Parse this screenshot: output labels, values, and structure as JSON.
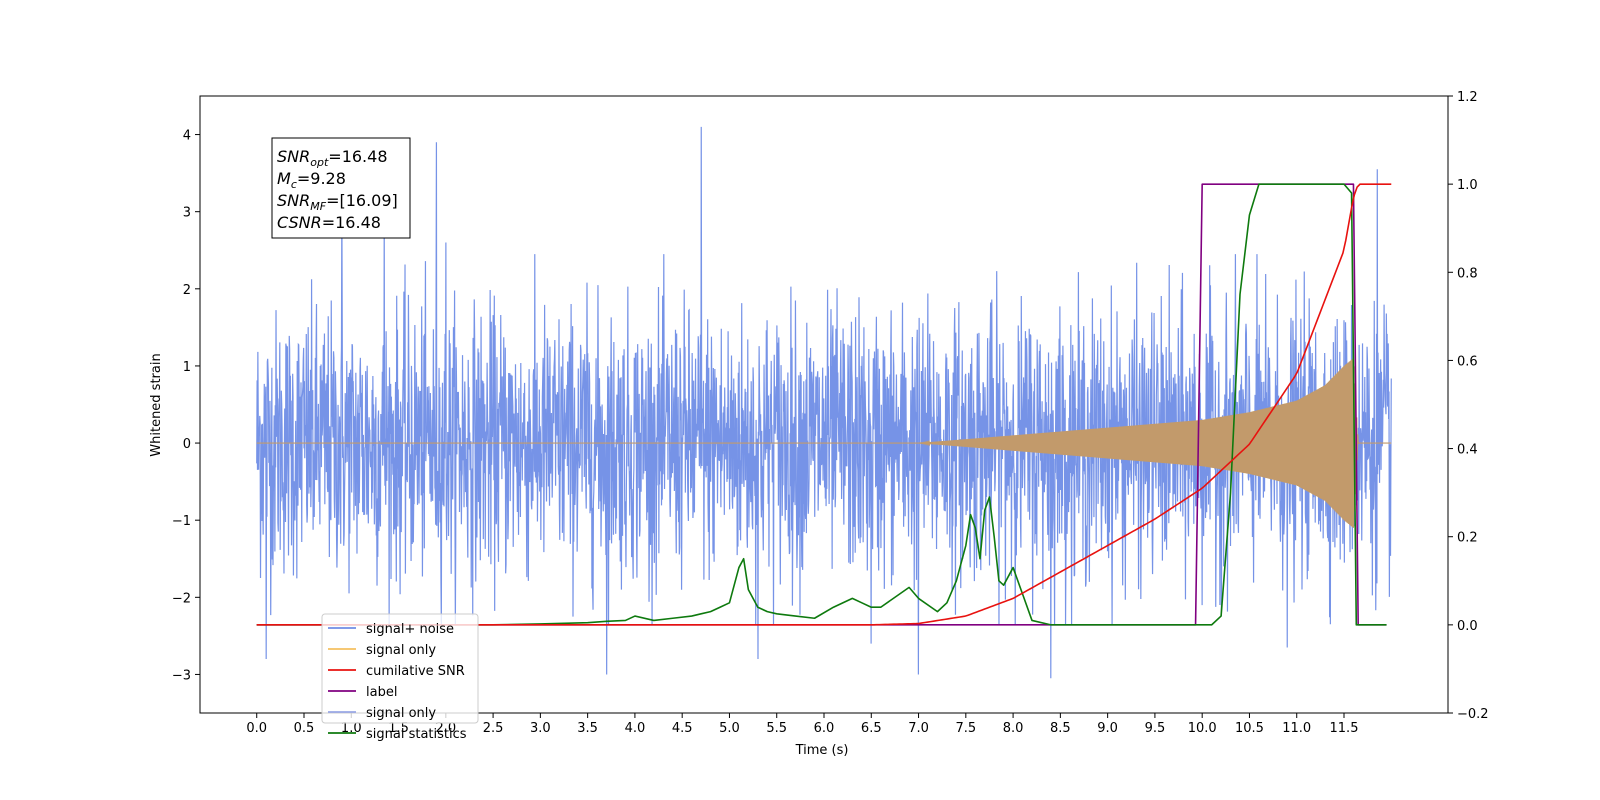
{
  "chart_data": {
    "type": "line",
    "title": "",
    "xlabel": "Time (s)",
    "ylabel": "Whitened strain",
    "xlim": [
      -0.6,
      12.6
    ],
    "ylim": [
      -3.5,
      4.5
    ],
    "ylim_right": [
      -0.2,
      1.2
    ],
    "x_ticks": [
      "0.0",
      "0.5",
      "1.0",
      "1.5",
      "2.0",
      "2.5",
      "3.0",
      "3.5",
      "4.0",
      "4.5",
      "5.0",
      "5.5",
      "6.0",
      "6.5",
      "7.0",
      "7.5",
      "8.0",
      "8.5",
      "9.0",
      "9.5",
      "10.0",
      "10.5",
      "11.0",
      "11.5"
    ],
    "y_ticks_left": [
      "−3",
      "−2",
      "−1",
      "0",
      "1",
      "2",
      "3",
      "4"
    ],
    "y_ticks_right": [
      "−0.2",
      "0.0",
      "0.2",
      "0.4",
      "0.6",
      "0.8",
      "1.0",
      "1.2"
    ],
    "grid": false,
    "legend_position": "lower-left",
    "annotation": {
      "lines": [
        {
          "name": "SNR",
          "sub": "opt",
          "value": "=16.48"
        },
        {
          "name": "M",
          "sub": "c",
          "value": "=9.28"
        },
        {
          "name": "SNR",
          "sub": "MF",
          "value": "=[16.09]"
        },
        {
          "name": "CSNR",
          "sub": "",
          "value": "=16.48"
        }
      ]
    },
    "series": [
      {
        "name": "signal+ noise",
        "color": "#6f8de6",
        "axis": "left",
        "description_range": {
          "x_start": 0.0,
          "x_end": 12.0,
          "typical_min": -2.3,
          "typical_max": 2.4
        },
        "peaks": [
          [
            0.1,
            -2.8
          ],
          [
            0.9,
            3.1
          ],
          [
            1.35,
            3.0
          ],
          [
            1.9,
            3.9
          ],
          [
            2.0,
            2.6
          ],
          [
            3.7,
            -3.0
          ],
          [
            4.7,
            4.1
          ],
          [
            5.3,
            -2.8
          ],
          [
            6.5,
            -2.6
          ],
          [
            7.0,
            -3.0
          ],
          [
            8.4,
            -3.05
          ],
          [
            10.9,
            -2.65
          ],
          [
            11.85,
            3.55
          ]
        ]
      },
      {
        "name": "signal only",
        "color": "#f5c060",
        "axis": "left",
        "x": [
          0.0,
          7.0,
          7.5,
          8.0,
          8.5,
          9.0,
          9.5,
          10.0,
          10.5,
          11.0,
          11.3,
          11.5,
          11.6,
          11.65,
          12.0
        ],
        "amplitude": [
          0.0,
          0.0,
          0.05,
          0.1,
          0.15,
          0.2,
          0.25,
          0.3,
          0.4,
          0.55,
          0.75,
          1.0,
          1.1,
          0.0,
          0.0
        ]
      },
      {
        "name": "cumilative SNR",
        "color": "#e8120f",
        "axis": "right",
        "x": [
          0.0,
          6.5,
          7.0,
          7.5,
          8.0,
          8.5,
          9.0,
          9.5,
          10.0,
          10.5,
          11.0,
          11.5,
          11.6,
          11.65,
          12.0
        ],
        "values": [
          0.0,
          0.0,
          0.003,
          0.02,
          0.06,
          0.12,
          0.18,
          0.24,
          0.31,
          0.41,
          0.57,
          0.85,
          0.97,
          1.0,
          1.0
        ]
      },
      {
        "name": "label",
        "color": "#800080",
        "axis": "right",
        "x": [
          0.0,
          9.93,
          10.0,
          11.6,
          11.65,
          11.95
        ],
        "values": [
          0.0,
          0.0,
          1.0,
          1.0,
          0.0,
          0.0
        ]
      },
      {
        "name": "signal only",
        "color": "#9aa8e6",
        "axis": "right",
        "x": [],
        "values": []
      },
      {
        "name": "signal statistics",
        "color": "#0e7a0e",
        "axis": "right",
        "x": [
          0.0,
          2.5,
          3.0,
          3.5,
          3.7,
          3.9,
          4.0,
          4.2,
          4.4,
          4.6,
          4.7,
          4.8,
          4.9,
          5.0,
          5.1,
          5.15,
          5.2,
          5.3,
          5.4,
          5.5,
          5.7,
          5.9,
          6.1,
          6.3,
          6.4,
          6.5,
          6.6,
          6.8,
          6.9,
          7.0,
          7.2,
          7.3,
          7.4,
          7.5,
          7.55,
          7.6,
          7.65,
          7.7,
          7.75,
          7.8,
          7.85,
          7.9,
          8.0,
          8.1,
          8.2,
          8.4,
          10.1,
          10.2,
          10.3,
          10.4,
          10.5,
          10.6,
          11.0,
          11.5,
          11.58,
          11.63,
          11.95
        ],
        "values": [
          0.0,
          0.0,
          0.002,
          0.005,
          0.008,
          0.01,
          0.02,
          0.01,
          0.015,
          0.02,
          0.025,
          0.03,
          0.04,
          0.05,
          0.13,
          0.15,
          0.08,
          0.04,
          0.03,
          0.025,
          0.02,
          0.015,
          0.04,
          0.06,
          0.05,
          0.04,
          0.04,
          0.07,
          0.085,
          0.06,
          0.03,
          0.05,
          0.1,
          0.18,
          0.25,
          0.22,
          0.15,
          0.26,
          0.29,
          0.2,
          0.1,
          0.09,
          0.13,
          0.07,
          0.01,
          0.0,
          0.0,
          0.02,
          0.3,
          0.75,
          0.93,
          1.0,
          1.0,
          1.0,
          0.98,
          0.0,
          0.0
        ]
      }
    ]
  }
}
